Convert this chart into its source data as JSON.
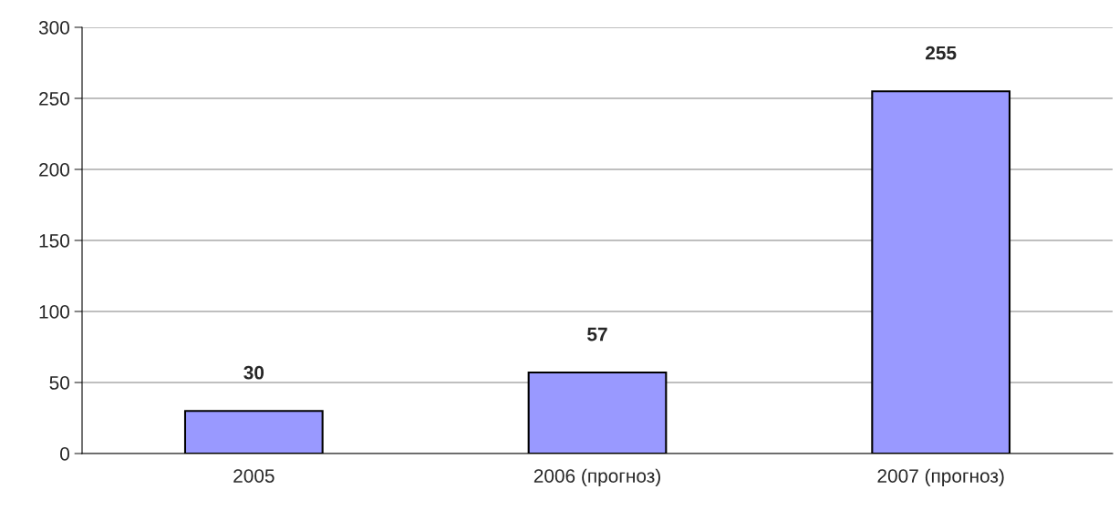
{
  "chart_data": {
    "type": "bar",
    "categories": [
      "2005",
      "2006 (прогноз)",
      "2007 (прогноз)"
    ],
    "values": [
      30,
      57,
      255
    ],
    "color": "#9999ff",
    "ylim": [
      0,
      300
    ],
    "yticks": [
      0,
      50,
      100,
      150,
      200,
      250,
      300
    ],
    "grid": "y",
    "data_labels": true
  }
}
